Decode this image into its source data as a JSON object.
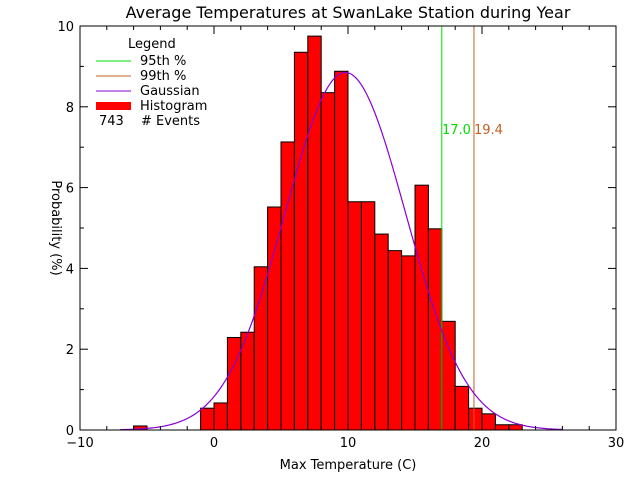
{
  "chart_data": {
    "type": "bar",
    "title": "Average Temperatures at SwanLake Station during Year",
    "xlabel": "Max Temperature (C)",
    "ylabel": "Probability (%)",
    "xlim": [
      -10,
      30
    ],
    "ylim": [
      0,
      10
    ],
    "xticks": [
      -10,
      0,
      10,
      20,
      30
    ],
    "yticks": [
      0,
      2,
      4,
      6,
      8,
      10
    ],
    "grid": false,
    "legend": {
      "title": "Legend",
      "items": [
        {
          "label": "95th %",
          "color": "#00dd00",
          "kind": "line"
        },
        {
          "label": "99th %",
          "color": "#c06020",
          "kind": "line"
        },
        {
          "label": "Gaussian",
          "color": "#8a00d4",
          "kind": "line"
        },
        {
          "label": "Histogram",
          "color": "#ff0000",
          "kind": "thick"
        }
      ],
      "events_count": "743",
      "events_label": "# Events",
      "placement": "top-left"
    },
    "histogram": {
      "color": "#ff0000",
      "bin_width": 1,
      "bins": [
        {
          "start": -6,
          "value": 0.1
        },
        {
          "start": -1,
          "value": 0.54
        },
        {
          "start": 0,
          "value": 0.67
        },
        {
          "start": 1,
          "value": 2.29
        },
        {
          "start": 2,
          "value": 2.42
        },
        {
          "start": 3,
          "value": 4.04
        },
        {
          "start": 4,
          "value": 5.52
        },
        {
          "start": 5,
          "value": 7.13
        },
        {
          "start": 6,
          "value": 9.35
        },
        {
          "start": 7,
          "value": 9.75
        },
        {
          "start": 8,
          "value": 8.35
        },
        {
          "start": 9,
          "value": 8.88
        },
        {
          "start": 10,
          "value": 5.65
        },
        {
          "start": 11,
          "value": 5.65
        },
        {
          "start": 12,
          "value": 4.85
        },
        {
          "start": 13,
          "value": 4.44
        },
        {
          "start": 14,
          "value": 4.31
        },
        {
          "start": 15,
          "value": 6.06
        },
        {
          "start": 16,
          "value": 4.98
        },
        {
          "start": 17,
          "value": 2.69
        },
        {
          "start": 18,
          "value": 1.08
        },
        {
          "start": 19,
          "value": 0.54
        },
        {
          "start": 20,
          "value": 0.4
        },
        {
          "start": 21,
          "value": 0.13
        },
        {
          "start": 22,
          "value": 0.13
        }
      ]
    },
    "gaussian": {
      "color": "#8a00d4",
      "mean": 9.8,
      "sigma": 4.5,
      "peak": 8.85,
      "x_range": [
        -7,
        26
      ]
    },
    "percentiles": [
      {
        "label": "17.0",
        "value": 17.0,
        "color": "#00dd00"
      },
      {
        "label": "19.4",
        "value": 19.4,
        "color": "#c06020"
      }
    ]
  }
}
